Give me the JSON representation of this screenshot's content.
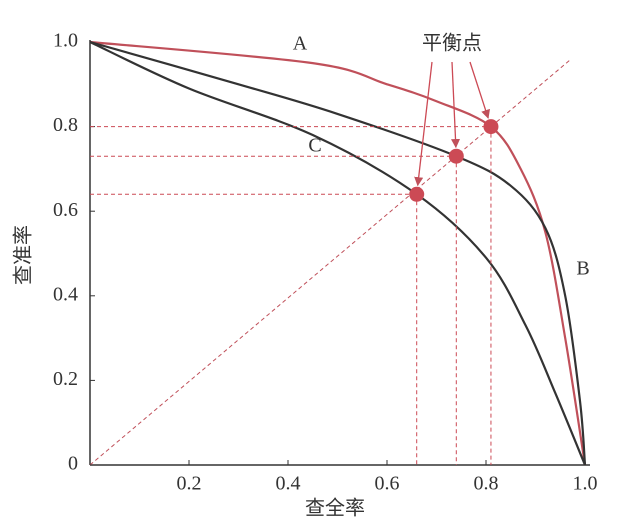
{
  "chart_data": {
    "type": "line",
    "x_label": "查全率",
    "y_label": "查准率",
    "annotation": "平衡点",
    "xlim": [
      0,
      1
    ],
    "ylim": [
      0,
      1
    ],
    "xticks": [
      0.2,
      0.4,
      0.6,
      0.8,
      {
        "value": 1,
        "label": "1.0"
      }
    ],
    "yticks": [
      0,
      0.2,
      0.4,
      0.6,
      0.8,
      {
        "value": 1,
        "label": "1.0"
      }
    ],
    "series": [
      {
        "name": "A",
        "color": "#c0505a",
        "x": [
          0,
          0.45,
          0.6,
          0.7,
          0.81,
          0.87,
          0.92,
          0.96,
          1.0
        ],
        "values": [
          1.0,
          0.95,
          0.9,
          0.86,
          0.8,
          0.7,
          0.55,
          0.3,
          0
        ]
      },
      {
        "name": "B",
        "color": "#333333",
        "x": [
          0,
          0.3,
          0.5,
          0.74,
          0.85,
          0.92,
          0.96,
          0.99,
          1.0
        ],
        "values": [
          1.0,
          0.9,
          0.83,
          0.73,
          0.66,
          0.56,
          0.4,
          0.15,
          0
        ]
      },
      {
        "name": "C",
        "color": "#333333",
        "x": [
          0,
          0.2,
          0.45,
          0.66,
          0.8,
          0.88,
          0.94,
          1.0
        ],
        "values": [
          1.0,
          0.89,
          0.78,
          0.64,
          0.49,
          0.33,
          0.17,
          0
        ]
      }
    ],
    "break_even": {
      "color": "#cc4a55",
      "x": [
        0.81,
        0.74,
        0.66
      ],
      "values": [
        0.8,
        0.73,
        0.64
      ]
    }
  }
}
